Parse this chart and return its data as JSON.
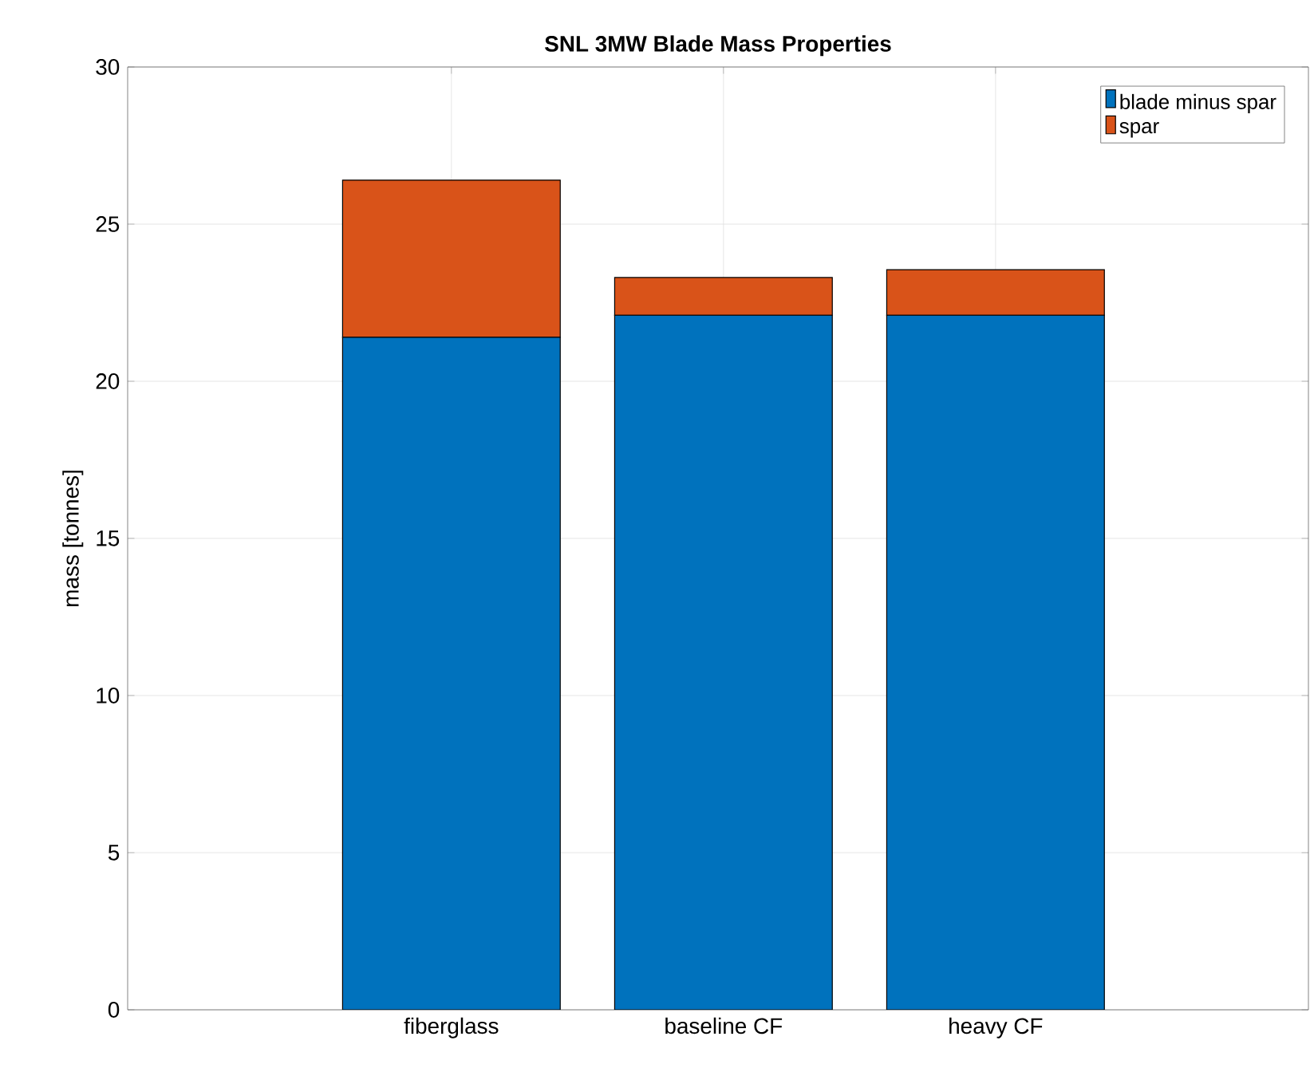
{
  "chart_data": {
    "type": "bar",
    "title": "SNL 3MW Blade Mass Properties",
    "ylabel": "mass [tonnes]",
    "categories": [
      "fiberglass",
      "baseline CF",
      "heavy CF"
    ],
    "stacked": true,
    "series": [
      {
        "name": "blade minus spar",
        "color": "#0072bd",
        "values": [
          21.4,
          22.1,
          22.1
        ]
      },
      {
        "name": "spar",
        "color": "#d95319",
        "values": [
          5.0,
          1.2,
          1.45
        ]
      }
    ],
    "ylim": [
      0,
      30
    ],
    "yticks": [
      0,
      5,
      10,
      15,
      20,
      25,
      30
    ],
    "grid": true,
    "legend": "top right"
  }
}
